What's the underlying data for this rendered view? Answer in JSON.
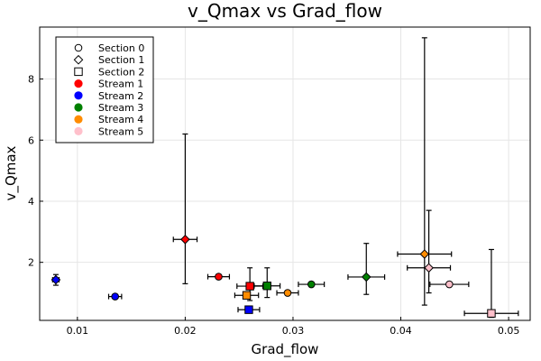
{
  "chart_data": {
    "type": "scatter",
    "title": "v_Qmax vs Grad_flow",
    "xlabel": "Grad_flow",
    "ylabel": "v_Qmax",
    "xlim": [
      0.0065,
      0.052
    ],
    "ylim": [
      0.1,
      9.7
    ],
    "xticks": [
      0.01,
      0.02,
      0.03,
      0.04,
      0.05
    ],
    "xtick_labels": [
      "0.01",
      "0.02",
      "0.03",
      "0.04",
      "0.05"
    ],
    "yticks": [
      2,
      4,
      6,
      8
    ],
    "ytick_labels": [
      "2",
      "4",
      "6",
      "8"
    ],
    "grid": true,
    "legend_position": "top-left",
    "legend": {
      "sections": [
        {
          "label": "Section 0",
          "marker": "circle"
        },
        {
          "label": "Section 1",
          "marker": "diamond"
        },
        {
          "label": "Section 2",
          "marker": "square"
        }
      ],
      "streams": [
        {
          "label": "Stream 1",
          "color": "#ff0000"
        },
        {
          "label": "Stream 2",
          "color": "#0000ff"
        },
        {
          "label": "Stream 3",
          "color": "#008000"
        },
        {
          "label": "Stream 4",
          "color": "#ff8c00"
        },
        {
          "label": "Stream 5",
          "color": "#ffc0cb"
        }
      ]
    },
    "points": [
      {
        "stream": 1,
        "section": 1,
        "x": 0.02,
        "y": 2.75,
        "xerr": 0.0011,
        "ylow": 1.3,
        "yhigh": 6.2
      },
      {
        "stream": 1,
        "section": 0,
        "x": 0.0231,
        "y": 1.53,
        "xerr": 0.001,
        "ylow": 1.53,
        "yhigh": 1.53
      },
      {
        "stream": 1,
        "section": 2,
        "x": 0.026,
        "y": 1.22,
        "xerr": 0.0012,
        "ylow": 0.75,
        "yhigh": 1.82
      },
      {
        "stream": 2,
        "section": 1,
        "x": 0.008,
        "y": 1.43,
        "xerr": 0.0003,
        "ylow": 1.25,
        "yhigh": 1.6
      },
      {
        "stream": 2,
        "section": 0,
        "x": 0.0135,
        "y": 0.88,
        "xerr": 0.0006,
        "ylow": 0.88,
        "yhigh": 0.88
      },
      {
        "stream": 2,
        "section": 2,
        "x": 0.0259,
        "y": 0.45,
        "xerr": 0.001,
        "ylow": 0.45,
        "yhigh": 0.45
      },
      {
        "stream": 3,
        "section": 2,
        "x": 0.0276,
        "y": 1.23,
        "xerr": 0.0012,
        "ylow": 0.85,
        "yhigh": 1.82
      },
      {
        "stream": 3,
        "section": 0,
        "x": 0.0317,
        "y": 1.28,
        "xerr": 0.0012,
        "ylow": 1.28,
        "yhigh": 1.28
      },
      {
        "stream": 3,
        "section": 1,
        "x": 0.0368,
        "y": 1.52,
        "xerr": 0.0017,
        "ylow": 0.95,
        "yhigh": 2.62
      },
      {
        "stream": 4,
        "section": 2,
        "x": 0.0257,
        "y": 0.92,
        "xerr": 0.0011,
        "ylow": 0.92,
        "yhigh": 0.92
      },
      {
        "stream": 4,
        "section": 0,
        "x": 0.0295,
        "y": 1.0,
        "xerr": 0.001,
        "ylow": 1.0,
        "yhigh": 1.0
      },
      {
        "stream": 4,
        "section": 1,
        "x": 0.0422,
        "y": 2.27,
        "xerr": 0.0025,
        "ylow": 0.6,
        "yhigh": 9.35
      },
      {
        "stream": 5,
        "section": 1,
        "x": 0.0426,
        "y": 1.82,
        "xerr": 0.002,
        "ylow": 1.0,
        "yhigh": 3.7
      },
      {
        "stream": 5,
        "section": 0,
        "x": 0.0445,
        "y": 1.28,
        "xerr": 0.0018,
        "ylow": 1.28,
        "yhigh": 1.28
      },
      {
        "stream": 5,
        "section": 2,
        "x": 0.0484,
        "y": 0.33,
        "xerr": 0.0025,
        "ylow": 0.2,
        "yhigh": 2.42
      }
    ]
  }
}
